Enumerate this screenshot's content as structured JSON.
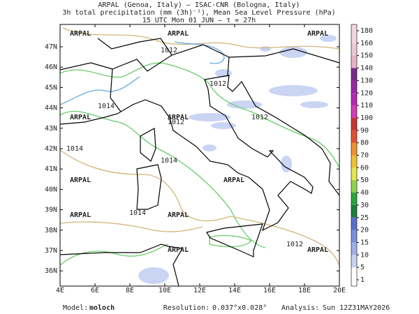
{
  "header": {
    "line1": "ARPAL (Genoa, Italy)  –  ISAC-CNR (Bologna, Italy)",
    "line2": "3h total precipitation (mm (3h)⁻¹), Mean Sea Level Pressure (hPa)",
    "line3": "15 UTC Mon 01 JUN  –  τ = 27h"
  },
  "map": {
    "lat_labels": [
      "47N",
      "46N",
      "45N",
      "44N",
      "43N",
      "42N",
      "41N",
      "40N",
      "39N",
      "38N",
      "37N",
      "36N"
    ],
    "lon_labels": [
      "4E",
      "6E",
      "8E",
      "10E",
      "12E",
      "14E",
      "16E",
      "18E",
      "20E"
    ],
    "watermark": "ARPAL",
    "isobar_labels": [
      "1012",
      "1012",
      "1012",
      "1014",
      "1014",
      "1012",
      "1014",
      "1012",
      "1014"
    ]
  },
  "colorbar": {
    "ticks": [
      1,
      5,
      10,
      15,
      20,
      25,
      30,
      40,
      50,
      60,
      70,
      80,
      90,
      100,
      110,
      120,
      130,
      140,
      150,
      160,
      180
    ],
    "colors": [
      "#ffffff",
      "#c8d2f0",
      "#9fb0e8",
      "#7d90dc",
      "#5a6fcc",
      "#1e7d3c",
      "#2aa53c",
      "#8cd24b",
      "#e6e650",
      "#f0c030",
      "#f09030",
      "#e05030",
      "#c83232",
      "#d23cb4",
      "#b428b4",
      "#9628a0",
      "#78288c",
      "#e6b4c8",
      "#ebc8d2",
      "#f0d7dc"
    ]
  },
  "footer": {
    "model_label": "Model:",
    "model": "moloch",
    "resolution_label": "Resolution:",
    "resolution": "0.037°x0.028°",
    "analysis_label": "Analysis:",
    "analysis": "Sun 12Z31MAY2026"
  }
}
